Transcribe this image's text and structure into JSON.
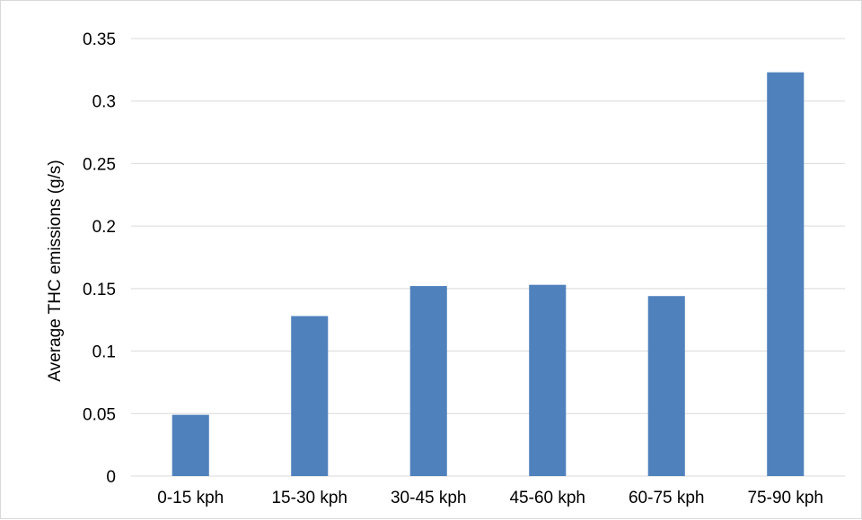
{
  "chart_data": {
    "type": "bar",
    "title": "",
    "xlabel": "",
    "ylabel": "Average THC emissions (g/s)",
    "categories": [
      "0-15 kph",
      "15-30 kph",
      "30-45 kph",
      "45-60 kph",
      "60-75 kph",
      "75-90 kph"
    ],
    "series": [
      {
        "values": [
          0.049,
          0.128,
          0.152,
          0.153,
          0.144,
          0.323
        ]
      }
    ],
    "ylim": [
      0,
      0.35
    ],
    "yticks": [
      "0",
      "0.05",
      "0.1",
      "0.15",
      "0.2",
      "0.25",
      "0.3",
      "0.35"
    ],
    "grid": true,
    "legend": "none",
    "colors": {
      "bar": "#4f81bd",
      "grid": "#d9d9d9"
    }
  }
}
